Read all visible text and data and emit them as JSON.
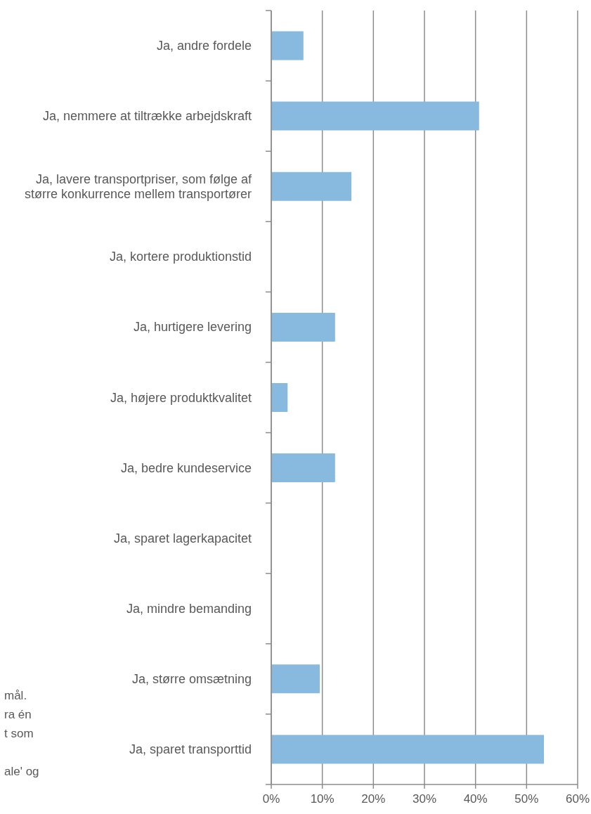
{
  "chart_data": {
    "type": "bar",
    "orientation": "horizontal",
    "categories": [
      "Ja, andre fordele",
      "Ja, nemmere at tiltrække arbejdskraft",
      "Ja, lavere transportpriser, som følge af større konkurrence mellem transportører",
      "Ja, kortere produktionstid",
      "Ja, hurtigere levering",
      "Ja, højere produktkvalitet",
      "Ja, bedre kundeservice",
      "Ja, sparet lagerkapacitet",
      "Ja, mindre bemanding",
      "Ja, større omsætning",
      "Ja, sparet transporttid"
    ],
    "values": [
      6.3,
      40.7,
      15.7,
      0,
      12.5,
      3.2,
      12.5,
      0,
      0,
      9.5,
      53.4
    ],
    "color": "#87bade",
    "xlim": [
      0,
      60
    ],
    "xticks": [
      {
        "value": 0,
        "label": "0%"
      },
      {
        "value": 10,
        "label": "10%"
      },
      {
        "value": 20,
        "label": "20%"
      },
      {
        "value": 30,
        "label": "30%"
      },
      {
        "value": 40,
        "label": "40%"
      },
      {
        "value": 50,
        "label": "50%"
      },
      {
        "value": 60,
        "label": "60%"
      }
    ],
    "grid": "x",
    "annotations": [
      "mål.",
      "ra én",
      "t som",
      "ale' og"
    ]
  }
}
